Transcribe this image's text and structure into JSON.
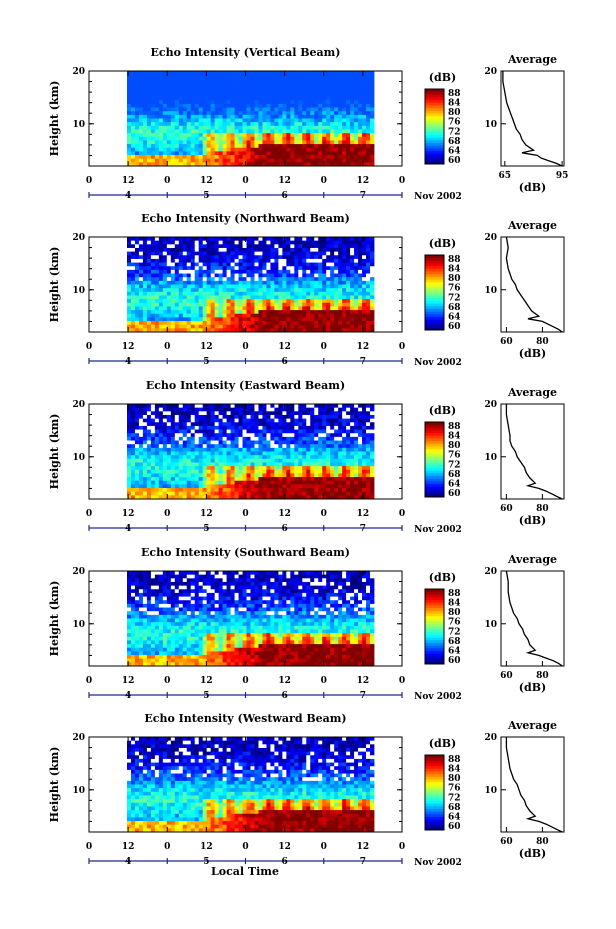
{
  "chart_data": [
    {
      "type": "heatmap",
      "title": "Echo Intensity (Vertical Beam)",
      "ylabel": "Height (km)",
      "ylim": [
        2,
        20
      ],
      "yticks": [
        "20",
        "10"
      ],
      "x_hour_ticks": [
        "0",
        "12",
        "0",
        "12",
        "0",
        "12",
        "0",
        "12",
        "0"
      ],
      "day_labels": [
        "4",
        "5",
        "6",
        "7"
      ],
      "date_label": "Nov 2002",
      "colorbar": {
        "unit": "(dB)",
        "ticks": [
          "88",
          "84",
          "80",
          "76",
          "72",
          "68",
          "64",
          "60"
        ],
        "range": [
          60,
          88
        ]
      },
      "profile": {
        "title": "Average",
        "xlabel": "(dB)",
        "xticks": [
          "65",
          "95"
        ],
        "xlim": [
          63,
          96
        ],
        "heights": [
          20,
          18,
          16,
          14,
          13,
          12,
          11,
          10,
          9,
          8,
          7,
          6,
          5,
          4.5,
          4,
          3.5,
          3,
          2.5,
          2
        ],
        "values": [
          64,
          64,
          65,
          66,
          67,
          68,
          69,
          70,
          71,
          73,
          74,
          76,
          80,
          74,
          82,
          84,
          88,
          92,
          95
        ]
      }
    },
    {
      "type": "heatmap",
      "title": "Echo Intensity (Northward Beam)",
      "ylabel": "Height (km)",
      "ylim": [
        2,
        20
      ],
      "yticks": [
        "20",
        "10"
      ],
      "x_hour_ticks": [
        "0",
        "12",
        "0",
        "12",
        "0",
        "12",
        "0",
        "12",
        "0"
      ],
      "day_labels": [
        "4",
        "5",
        "6",
        "7"
      ],
      "date_label": "Nov 2002",
      "colorbar": {
        "unit": "(dB)",
        "ticks": [
          "88",
          "84",
          "80",
          "76",
          "72",
          "68",
          "64",
          "60"
        ],
        "range": [
          60,
          88
        ]
      },
      "profile": {
        "title": "Average",
        "xlabel": "(dB)",
        "xticks": [
          "60",
          "80"
        ],
        "xlim": [
          57,
          92
        ],
        "heights": [
          20,
          18,
          16,
          14,
          13,
          12,
          11,
          10,
          9,
          8,
          7,
          6,
          5,
          4.5,
          4,
          3.5,
          3,
          2.5,
          2
        ],
        "values": [
          60,
          61,
          60,
          61,
          62,
          63,
          65,
          66,
          68,
          70,
          72,
          74,
          78,
          72,
          80,
          83,
          86,
          89,
          91
        ]
      }
    },
    {
      "type": "heatmap",
      "title": "Echo Intensity (Eastward Beam)",
      "ylabel": "Height (km)",
      "ylim": [
        2,
        20
      ],
      "yticks": [
        "20",
        "10"
      ],
      "x_hour_ticks": [
        "0",
        "12",
        "0",
        "12",
        "0",
        "12",
        "0",
        "12",
        "0"
      ],
      "day_labels": [
        "4",
        "5",
        "6",
        "7"
      ],
      "date_label": "Nov 2002",
      "colorbar": {
        "unit": "(dB)",
        "ticks": [
          "88",
          "84",
          "80",
          "76",
          "72",
          "68",
          "64",
          "60"
        ],
        "range": [
          60,
          88
        ]
      },
      "profile": {
        "title": "Average",
        "xlabel": "(dB)",
        "xticks": [
          "60",
          "80"
        ],
        "xlim": [
          57,
          92
        ],
        "heights": [
          20,
          18,
          16,
          14,
          13,
          12,
          11,
          10,
          9,
          8,
          7,
          6,
          5,
          4.5,
          4,
          3.5,
          3,
          2.5,
          2
        ],
        "values": [
          60,
          60,
          61,
          62,
          62,
          63,
          65,
          66,
          68,
          70,
          71,
          73,
          76,
          72,
          78,
          82,
          85,
          88,
          91
        ]
      }
    },
    {
      "type": "heatmap",
      "title": "Echo Intensity (Southward Beam)",
      "ylabel": "Height (km)",
      "ylim": [
        2,
        20
      ],
      "yticks": [
        "20",
        "10"
      ],
      "x_hour_ticks": [
        "0",
        "12",
        "0",
        "12",
        "0",
        "12",
        "0",
        "12",
        "0"
      ],
      "day_labels": [
        "4",
        "5",
        "6",
        "7"
      ],
      "date_label": "Nov 2002",
      "colorbar": {
        "unit": "(dB)",
        "ticks": [
          "88",
          "84",
          "80",
          "76",
          "72",
          "68",
          "64",
          "60"
        ],
        "range": [
          60,
          88
        ]
      },
      "profile": {
        "title": "Average",
        "xlabel": "(dB)",
        "xticks": [
          "60",
          "80"
        ],
        "xlim": [
          57,
          92
        ],
        "heights": [
          20,
          18,
          16,
          14,
          13,
          12,
          11,
          10,
          9,
          8,
          7,
          6,
          5,
          4.5,
          4,
          3.5,
          3,
          2.5,
          2
        ],
        "values": [
          60,
          61,
          61,
          62,
          63,
          64,
          66,
          67,
          69,
          70,
          72,
          73,
          76,
          72,
          78,
          82,
          86,
          89,
          91
        ]
      }
    },
    {
      "type": "heatmap",
      "title": "Echo Intensity (Westward Beam)",
      "ylabel": "Height (km)",
      "ylim": [
        2,
        20
      ],
      "yticks": [
        "20",
        "10"
      ],
      "x_hour_ticks": [
        "0",
        "12",
        "0",
        "12",
        "0",
        "12",
        "0",
        "12",
        "0"
      ],
      "day_labels": [
        "4",
        "5",
        "6",
        "7"
      ],
      "date_label": "Nov 2002",
      "xlabel": "Local Time",
      "colorbar": {
        "unit": "(dB)",
        "ticks": [
          "88",
          "84",
          "80",
          "76",
          "72",
          "68",
          "64",
          "60"
        ],
        "range": [
          60,
          88
        ]
      },
      "profile": {
        "title": "Average",
        "xlabel": "(dB)",
        "xticks": [
          "60",
          "80"
        ],
        "xlim": [
          57,
          92
        ],
        "heights": [
          20,
          18,
          16,
          14,
          13,
          12,
          11,
          10,
          9,
          8,
          7,
          6,
          5,
          4.5,
          4,
          3.5,
          3,
          2.5,
          2
        ],
        "values": [
          60,
          60,
          61,
          62,
          63,
          64,
          66,
          67,
          68,
          70,
          71,
          73,
          76,
          72,
          78,
          82,
          85,
          88,
          91
        ]
      }
    }
  ]
}
